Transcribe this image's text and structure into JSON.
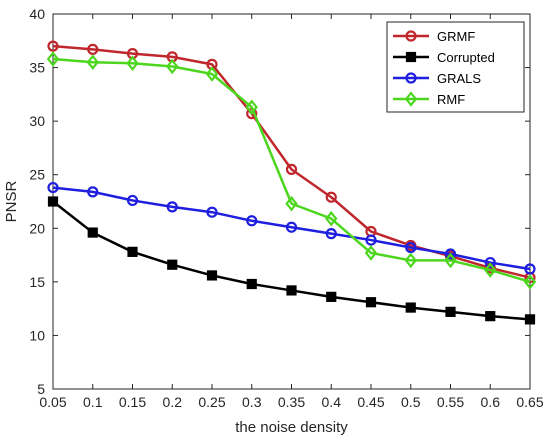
{
  "chart_data": {
    "type": "line",
    "title": "",
    "xlabel": "the noise density",
    "ylabel": "PNSR",
    "x": [
      0.05,
      0.1,
      0.15,
      0.2,
      0.25,
      0.3,
      0.35,
      0.4,
      0.45,
      0.5,
      0.55,
      0.6,
      0.65
    ],
    "x_tick_labels": [
      "0.05",
      "0.1",
      "0.15",
      "0.2",
      "0.25",
      "0.3",
      "0.35",
      "0.4",
      "0.45",
      "0.5",
      "0.55",
      "0.6",
      "0.65"
    ],
    "xlim": [
      0.05,
      0.65
    ],
    "ylim": [
      5,
      40
    ],
    "y_ticks": [
      5,
      10,
      15,
      20,
      25,
      30,
      35,
      40
    ],
    "grid": false,
    "legend_position": "top-right",
    "series": [
      {
        "name": "GRMF",
        "color": "#c0272d",
        "marker": "circle",
        "values": [
          37.0,
          36.7,
          36.3,
          36.0,
          35.3,
          30.7,
          25.5,
          22.9,
          19.7,
          18.4,
          17.4,
          16.3,
          15.4
        ]
      },
      {
        "name": "Corrupted",
        "color": "#000000",
        "marker": "square",
        "values": [
          22.5,
          19.6,
          17.8,
          16.6,
          15.6,
          14.8,
          14.2,
          13.6,
          13.1,
          12.6,
          12.2,
          11.8,
          11.5
        ]
      },
      {
        "name": "GRALS",
        "color": "#1f1fe0",
        "marker": "circle",
        "values": [
          23.8,
          23.4,
          22.6,
          22.0,
          21.5,
          20.7,
          20.1,
          19.5,
          18.9,
          18.2,
          17.6,
          16.8,
          16.2
        ]
      },
      {
        "name": "RMF",
        "color": "#4cd61e",
        "marker": "diamond",
        "values": [
          35.8,
          35.5,
          35.4,
          35.1,
          34.4,
          31.3,
          22.3,
          20.9,
          17.7,
          17.0,
          17.0,
          16.1,
          15.0
        ]
      }
    ]
  }
}
